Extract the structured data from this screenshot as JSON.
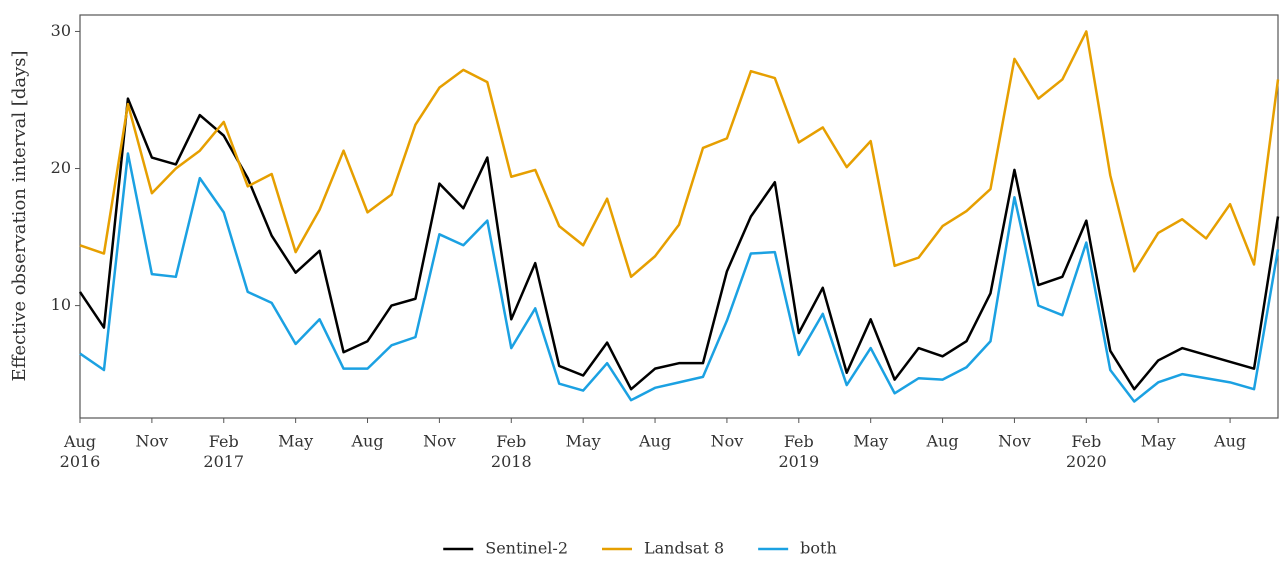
{
  "chart_data": {
    "type": "line",
    "y_label": "Effective observation interval [days]",
    "x": [
      "2016-08",
      "2016-09",
      "2016-10",
      "2016-11",
      "2016-12",
      "2017-01",
      "2017-02",
      "2017-03",
      "2017-04",
      "2017-05",
      "2017-06",
      "2017-07",
      "2017-08",
      "2017-09",
      "2017-10",
      "2017-11",
      "2017-12",
      "2018-01",
      "2018-02",
      "2018-03",
      "2018-04",
      "2018-05",
      "2018-06",
      "2018-07",
      "2018-08",
      "2018-09",
      "2018-10",
      "2018-11",
      "2018-12",
      "2019-01",
      "2019-02",
      "2019-03",
      "2019-04",
      "2019-05",
      "2019-06",
      "2019-07",
      "2019-08",
      "2019-09",
      "2019-10",
      "2019-11",
      "2019-12",
      "2020-01",
      "2020-02",
      "2020-03",
      "2020-04",
      "2020-05",
      "2020-06",
      "2020-07",
      "2020-08",
      "2020-09",
      "2020-10"
    ],
    "series": [
      {
        "name": "Sentinel-2",
        "color": "#000000",
        "values": [
          11.0,
          8.4,
          25.1,
          20.8,
          20.3,
          23.9,
          22.4,
          19.3,
          15.1,
          12.4,
          14.0,
          6.6,
          7.4,
          10.0,
          10.5,
          18.9,
          17.1,
          20.8,
          9.0,
          13.1,
          5.6,
          4.9,
          7.3,
          3.9,
          5.4,
          5.8,
          5.8,
          12.5,
          16.5,
          19.0,
          8.0,
          11.3,
          5.1,
          9.0,
          4.6,
          6.9,
          6.3,
          7.4,
          10.9,
          19.9,
          11.5,
          12.1,
          16.2,
          6.7,
          3.9,
          6.0,
          6.9,
          6.4,
          5.9,
          5.4,
          16.5
        ]
      },
      {
        "name": "Landsat 8",
        "color": "#e69f00",
        "values": [
          14.4,
          13.8,
          24.7,
          18.2,
          20.0,
          21.3,
          23.4,
          18.7,
          19.6,
          13.9,
          17.0,
          21.3,
          16.8,
          18.1,
          23.2,
          25.9,
          27.2,
          26.3,
          19.4,
          19.9,
          15.8,
          14.4,
          17.8,
          12.1,
          13.6,
          15.9,
          21.5,
          22.2,
          27.1,
          26.6,
          21.9,
          23.0,
          20.1,
          22.0,
          12.9,
          13.5,
          15.8,
          16.9,
          18.5,
          28.0,
          25.1,
          26.5,
          30.0,
          19.5,
          12.5,
          15.3,
          16.3,
          14.9,
          17.4,
          13.0,
          26.5
        ]
      },
      {
        "name": "both",
        "color": "#1ba1e2",
        "values": [
          6.5,
          5.3,
          21.1,
          12.3,
          12.1,
          19.3,
          16.8,
          11.0,
          10.2,
          7.2,
          9.0,
          5.4,
          5.4,
          7.1,
          7.7,
          15.2,
          14.4,
          16.2,
          6.9,
          9.8,
          4.3,
          3.8,
          5.8,
          3.1,
          4.0,
          4.4,
          4.8,
          8.9,
          13.8,
          13.9,
          6.4,
          9.4,
          4.2,
          6.9,
          3.6,
          4.7,
          4.6,
          5.5,
          7.4,
          17.9,
          10.0,
          9.3,
          14.6,
          5.3,
          3.0,
          4.4,
          5.0,
          4.7,
          4.4,
          3.9,
          14.1
        ]
      }
    ],
    "xlim": [
      "2016-08",
      "2020-10"
    ],
    "xticks": [
      {
        "value": "2016-08",
        "label": "Aug 2016"
      },
      {
        "value": "2016-11",
        "label": "Nov"
      },
      {
        "value": "2017-02",
        "label": "Feb 2017"
      },
      {
        "value": "2017-05",
        "label": "May"
      },
      {
        "value": "2017-08",
        "label": "Aug"
      },
      {
        "value": "2017-11",
        "label": "Nov"
      },
      {
        "value": "2018-02",
        "label": "Feb 2018"
      },
      {
        "value": "2018-05",
        "label": "May"
      },
      {
        "value": "2018-08",
        "label": "Aug"
      },
      {
        "value": "2018-11",
        "label": "Nov"
      },
      {
        "value": "2019-02",
        "label": "Feb 2019"
      },
      {
        "value": "2019-05",
        "label": "May"
      },
      {
        "value": "2019-08",
        "label": "Aug"
      },
      {
        "value": "2019-11",
        "label": "Nov"
      },
      {
        "value": "2020-02",
        "label": "Feb 2020"
      },
      {
        "value": "2020-05",
        "label": "May"
      },
      {
        "value": "2020-08",
        "label": "Aug"
      }
    ],
    "ylim": [
      1.8,
      31.2
    ],
    "yticks": [
      10,
      20,
      30
    ],
    "legend": "bottom"
  }
}
